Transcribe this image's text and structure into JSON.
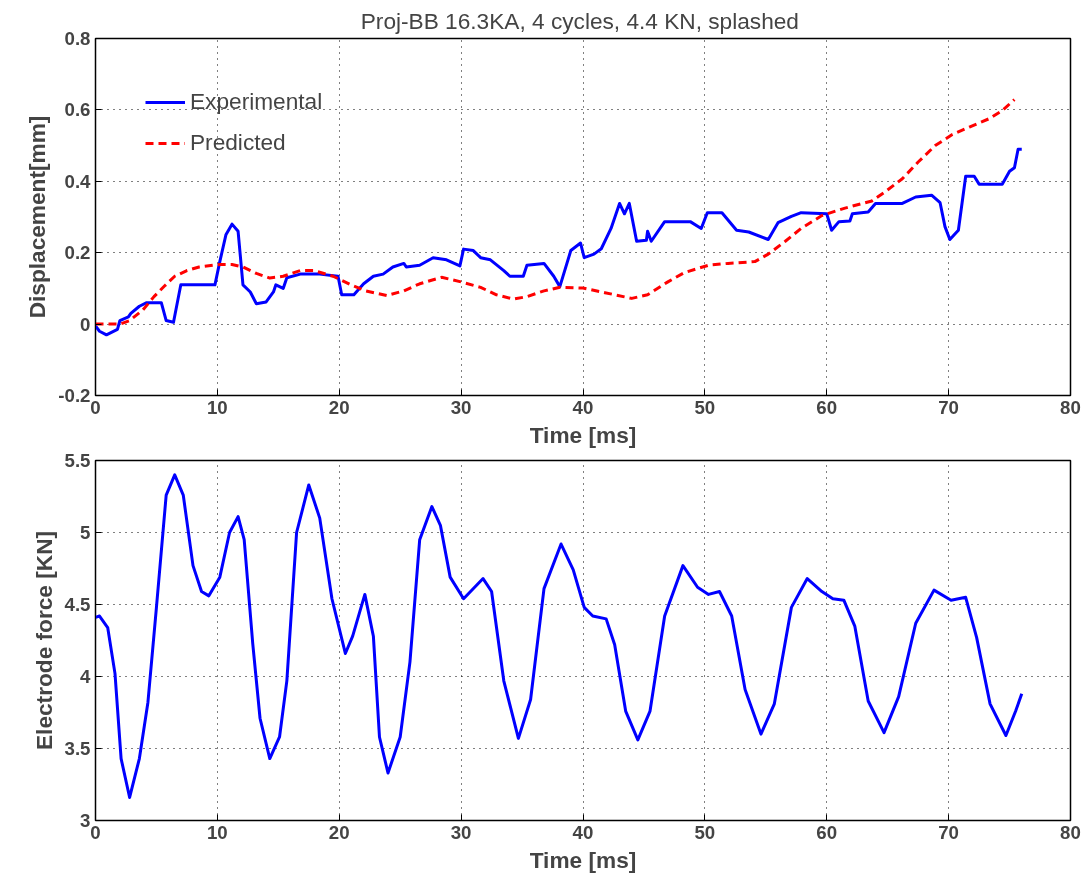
{
  "chart_data": [
    {
      "type": "line",
      "title": "Proj-BB  16.3KA, 4 cycles, 4.4 KN, splashed",
      "xlabel": "Time [ms]",
      "ylabel": "Displacement[mm]",
      "xlim": [
        0,
        80
      ],
      "xticks": [
        0,
        10,
        20,
        30,
        40,
        50,
        60,
        70,
        80
      ],
      "ylim": [
        -0.2,
        0.8
      ],
      "yticks": [
        -0.2,
        0,
        0.2,
        0.4,
        0.6,
        0.8
      ],
      "grid": true,
      "legend": "top left",
      "series": [
        {
          "name": "Experimental",
          "color": "#0000ff",
          "line_style": "solid",
          "x": [
            0,
            0.33,
            0.9,
            1.8,
            2.0,
            2.7,
            2.9,
            3.6,
            4.2,
            5.4,
            5.8,
            6.4,
            7.0,
            7.5,
            9.8,
            10.2,
            10.7,
            11.2,
            11.7,
            12.1,
            12.7,
            13.2,
            14.0,
            14.6,
            14.8,
            15.4,
            15.7,
            16.8,
            18.4,
            19.9,
            20.2,
            21.2,
            22.0,
            22.8,
            23.6,
            24.4,
            25.3,
            25.5,
            26.6,
            27.7,
            28.8,
            29.9,
            30.2,
            31.0,
            31.6,
            32.4,
            33.5,
            34.0,
            35.1,
            35.4,
            36.8,
            37.6,
            38.1,
            39.0,
            39.8,
            40.1,
            40.9,
            41.5,
            42.3,
            43.0,
            43.4,
            43.8,
            44.4,
            45.2,
            45.3,
            45.6,
            46.7,
            48.8,
            49.7,
            50.2,
            51.4,
            52.6,
            53.6,
            55.2,
            56.0,
            57.1,
            57.9,
            60.0,
            60.4,
            61.0,
            61.9,
            62.1,
            63.4,
            64.0,
            66.2,
            67.3,
            68.6,
            69.3,
            69.7,
            70.1,
            70.8,
            71.4,
            72.1,
            72.5,
            74.4,
            75.0,
            75.4,
            75.7,
            76.0
          ],
          "values": [
            -0.005,
            -0.02,
            -0.03,
            -0.015,
            0.01,
            0.02,
            0.03,
            0.05,
            0.06,
            0.06,
            0.01,
            0.005,
            0.11,
            0.11,
            0.11,
            0.175,
            0.25,
            0.28,
            0.26,
            0.11,
            0.09,
            0.057,
            0.062,
            0.09,
            0.11,
            0.1,
            0.13,
            0.14,
            0.14,
            0.134,
            0.082,
            0.082,
            0.113,
            0.134,
            0.14,
            0.16,
            0.17,
            0.16,
            0.165,
            0.186,
            0.18,
            0.163,
            0.21,
            0.206,
            0.186,
            0.18,
            0.15,
            0.134,
            0.134,
            0.165,
            0.17,
            0.134,
            0.105,
            0.206,
            0.227,
            0.186,
            0.196,
            0.211,
            0.268,
            0.338,
            0.309,
            0.338,
            0.232,
            0.235,
            0.26,
            0.232,
            0.287,
            0.287,
            0.268,
            0.312,
            0.312,
            0.263,
            0.258,
            0.237,
            0.284,
            0.302,
            0.312,
            0.309,
            0.263,
            0.287,
            0.289,
            0.309,
            0.314,
            0.338,
            0.338,
            0.356,
            0.361,
            0.34,
            0.273,
            0.237,
            0.263,
            0.414,
            0.414,
            0.392,
            0.392,
            0.428,
            0.438,
            0.49,
            0.49
          ]
        },
        {
          "name": "Predicted",
          "color": "#ff0000",
          "line_style": "dashed",
          "x": [
            0,
            2.0,
            2.8,
            3.9,
            4.8,
            5.7,
            6.5,
            7.5,
            8.5,
            10.2,
            11.2,
            12.1,
            13.2,
            14.3,
            15.4,
            16.8,
            17.9,
            19.5,
            20.9,
            22.2,
            23.9,
            25.3,
            26.6,
            28.4,
            29.9,
            31.6,
            32.9,
            34.3,
            35.4,
            36.8,
            38.1,
            40.0,
            41.8,
            44.0,
            45.3,
            47.0,
            48.3,
            50.3,
            51.9,
            54.1,
            55.2,
            56.6,
            57.9,
            59.6,
            61.5,
            63.7,
            64.8,
            66.2,
            67.5,
            68.9,
            70.3,
            71.7,
            73.3,
            74.4,
            75.4
          ],
          "values": [
            0,
            0,
            0.01,
            0.04,
            0.077,
            0.108,
            0.134,
            0.15,
            0.16,
            0.167,
            0.167,
            0.16,
            0.142,
            0.129,
            0.134,
            0.15,
            0.15,
            0.134,
            0.111,
            0.093,
            0.08,
            0.093,
            0.113,
            0.131,
            0.119,
            0.103,
            0.082,
            0.07,
            0.077,
            0.093,
            0.103,
            0.101,
            0.088,
            0.072,
            0.082,
            0.119,
            0.144,
            0.165,
            0.17,
            0.175,
            0.196,
            0.232,
            0.268,
            0.304,
            0.325,
            0.345,
            0.371,
            0.407,
            0.454,
            0.5,
            0.531,
            0.552,
            0.575,
            0.598,
            0.629
          ]
        }
      ]
    },
    {
      "type": "line",
      "xlabel": "Time [ms]",
      "ylabel": "Electrode force [KN]",
      "xlim": [
        0,
        80
      ],
      "xticks": [
        0,
        10,
        20,
        30,
        40,
        50,
        60,
        70,
        80
      ],
      "ylim": [
        3,
        5.5
      ],
      "yticks": [
        3,
        3.5,
        4,
        4.5,
        5,
        5.5
      ],
      "grid": true,
      "series": [
        {
          "color": "#0000ff",
          "line_style": "solid",
          "x": [
            0,
            0.33,
            1.0,
            1.6,
            2.1,
            2.8,
            3.6,
            4.3,
            5.0,
            5.8,
            6.5,
            7.2,
            8.0,
            8.7,
            9.3,
            10.2,
            11.0,
            11.7,
            12.2,
            12.9,
            13.5,
            14.3,
            15.1,
            15.7,
            16.5,
            17.5,
            18.4,
            19.4,
            20.5,
            21.1,
            22.1,
            22.8,
            23.3,
            24.0,
            25.0,
            25.8,
            26.6,
            27.6,
            28.3,
            29.1,
            30.2,
            31.8,
            32.5,
            33.5,
            34.7,
            35.7,
            36.8,
            38.2,
            39.2,
            40.1,
            40.8,
            41.9,
            42.6,
            43.5,
            44.5,
            45.5,
            46.7,
            48.2,
            49.4,
            50.3,
            51.2,
            52.2,
            53.3,
            54.6,
            55.7,
            57.1,
            58.4,
            59.6,
            60.5,
            61.4,
            62.3,
            63.4,
            64.7,
            65.9,
            67.3,
            68.8,
            70.2,
            71.4,
            72.3,
            73.4,
            74.7,
            75.5,
            76.0
          ],
          "values": [
            4.41,
            4.42,
            4.34,
            4.02,
            3.43,
            3.16,
            3.43,
            3.82,
            4.48,
            5.26,
            5.4,
            5.26,
            4.77,
            4.59,
            4.56,
            4.69,
            5.0,
            5.11,
            4.95,
            4.23,
            3.71,
            3.43,
            3.58,
            3.97,
            5.0,
            5.33,
            5.1,
            4.54,
            4.16,
            4.28,
            4.57,
            4.28,
            3.58,
            3.33,
            3.58,
            4.1,
            4.95,
            5.18,
            5.05,
            4.69,
            4.54,
            4.68,
            4.59,
            3.97,
            3.57,
            3.84,
            4.61,
            4.92,
            4.74,
            4.48,
            4.42,
            4.4,
            4.22,
            3.76,
            3.56,
            3.76,
            4.42,
            4.77,
            4.62,
            4.57,
            4.59,
            4.42,
            3.91,
            3.6,
            3.81,
            4.48,
            4.68,
            4.59,
            4.54,
            4.53,
            4.35,
            3.83,
            3.61,
            3.86,
            4.37,
            4.6,
            4.53,
            4.55,
            4.27,
            3.81,
            3.59,
            3.76,
            3.88
          ]
        }
      ]
    }
  ]
}
